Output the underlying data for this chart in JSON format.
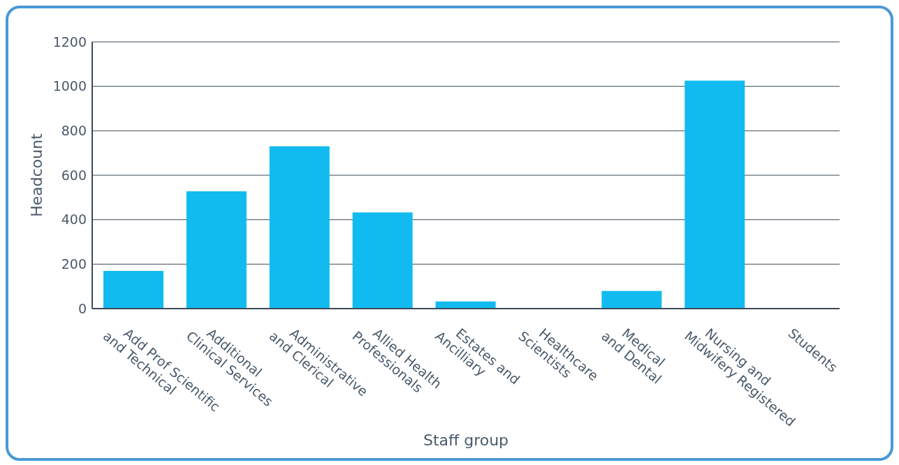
{
  "chart_data": {
    "type": "bar",
    "xlabel": "Staff group",
    "ylabel": "Headcount",
    "categories": [
      "Add Prof Scientific and Technical",
      "Additional Clinical Services",
      "Administrative and Clerical",
      "Allied Health Professionals",
      "Estates and Ancilliary",
      "Healthcare Scientists",
      "Medical and Dental",
      "Nursing and Midwifery Registered",
      "Students"
    ],
    "values": [
      170,
      528,
      730,
      433,
      32,
      0,
      79,
      1026,
      0
    ],
    "color": "#12bbef",
    "ylim": [
      0,
      1200
    ],
    "yticks": [
      0,
      200,
      400,
      600,
      800,
      1000,
      1200
    ],
    "grid": "y",
    "legend": false
  }
}
